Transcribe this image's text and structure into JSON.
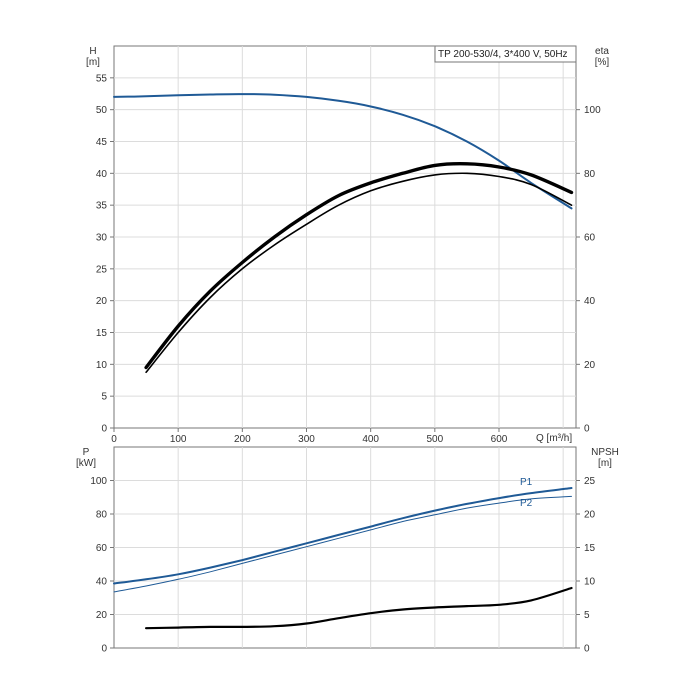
{
  "chart_data": [
    {
      "type": "line",
      "title": "TP 200-530/4, 3*400 V, 50Hz",
      "xlabel": "Q [m³/h]",
      "x_ticks": [
        "0",
        "100",
        "200",
        "300",
        "400",
        "500",
        "600"
      ],
      "xlim": [
        0,
        720
      ],
      "left_axis": {
        "label": "H",
        "unit": "[m]",
        "ylim": [
          0,
          60
        ],
        "ticks": [
          "0",
          "5",
          "10",
          "15",
          "20",
          "25",
          "30",
          "35",
          "40",
          "45",
          "50",
          "55"
        ]
      },
      "right_axis": {
        "label": "eta",
        "unit": "[%]",
        "ylim": [
          0,
          120
        ],
        "ticks": [
          "0",
          "20",
          "40",
          "60",
          "80",
          "100"
        ]
      },
      "grid": true,
      "series": [
        {
          "axis": "left",
          "color": "#1f5a96",
          "points": [
            [
              0,
              52.0
            ],
            [
              50,
              52.1
            ],
            [
              100,
              52.25
            ],
            [
              150,
              52.38
            ],
            [
              200,
              52.45
            ],
            [
              250,
              52.35
            ],
            [
              300,
              52.0
            ],
            [
              350,
              51.4
            ],
            [
              400,
              50.5
            ],
            [
              450,
              49.2
            ],
            [
              500,
              47.4
            ],
            [
              550,
              45.0
            ],
            [
              600,
              42.0
            ],
            [
              650,
              38.5
            ],
            [
              713,
              34.5
            ]
          ]
        },
        {
          "axis": "right",
          "color": "#000000",
          "points": [
            [
              50,
              19
            ],
            [
              100,
              32
            ],
            [
              150,
              43
            ],
            [
              200,
              52
            ],
            [
              250,
              60
            ],
            [
              300,
              67
            ],
            [
              350,
              73
            ],
            [
              400,
              77
            ],
            [
              450,
              80
            ],
            [
              500,
              82.5
            ],
            [
              550,
              83
            ],
            [
              600,
              82
            ],
            [
              650,
              79.5
            ],
            [
              713,
              74
            ]
          ]
        },
        {
          "axis": "right",
          "color": "#000000",
          "points": [
            [
              50,
              17.5
            ],
            [
              100,
              30
            ],
            [
              150,
              41
            ],
            [
              200,
              50
            ],
            [
              250,
              57.5
            ],
            [
              300,
              64
            ],
            [
              350,
              70
            ],
            [
              400,
              74.5
            ],
            [
              450,
              77.5
            ],
            [
              500,
              79.5
            ],
            [
              550,
              80
            ],
            [
              600,
              79
            ],
            [
              650,
              76.5
            ],
            [
              713,
              70
            ]
          ]
        }
      ]
    },
    {
      "type": "line",
      "xlim": [
        0,
        720
      ],
      "left_axis": {
        "label": "P",
        "unit": "[kW]",
        "ylim": [
          0,
          120
        ],
        "ticks": [
          "0",
          "20",
          "40",
          "60",
          "80",
          "100"
        ]
      },
      "right_axis": {
        "label": "NPSH",
        "unit": "[m]",
        "ylim": [
          0,
          30
        ],
        "ticks": [
          "0",
          "5",
          "10",
          "15",
          "20",
          "25"
        ]
      },
      "grid": true,
      "series": [
        {
          "name": "P1",
          "axis": "left",
          "color": "#1f5a96",
          "points": [
            [
              0,
              38.5
            ],
            [
              50,
              41
            ],
            [
              100,
              44
            ],
            [
              150,
              48
            ],
            [
              200,
              52.5
            ],
            [
              250,
              57.5
            ],
            [
              300,
              62.5
            ],
            [
              350,
              67.5
            ],
            [
              400,
              72.5
            ],
            [
              450,
              77.5
            ],
            [
              500,
              82
            ],
            [
              550,
              86
            ],
            [
              600,
              89.5
            ],
            [
              650,
              92.5
            ],
            [
              713,
              95.5
            ]
          ]
        },
        {
          "name": "P2",
          "axis": "left",
          "color": "#1f5a96",
          "points": [
            [
              0,
              33.5
            ],
            [
              50,
              37
            ],
            [
              100,
              41
            ],
            [
              150,
              45.5
            ],
            [
              200,
              50.5
            ],
            [
              250,
              55.5
            ],
            [
              300,
              60.5
            ],
            [
              350,
              65.5
            ],
            [
              400,
              70.5
            ],
            [
              450,
              75.5
            ],
            [
              500,
              79.5
            ],
            [
              550,
              83.5
            ],
            [
              600,
              86.5
            ],
            [
              650,
              89
            ],
            [
              713,
              90.5
            ]
          ]
        },
        {
          "axis": "right",
          "color": "#000000",
          "points": [
            [
              50,
              2.95
            ],
            [
              100,
              3.05
            ],
            [
              150,
              3.15
            ],
            [
              200,
              3.15
            ],
            [
              250,
              3.25
            ],
            [
              300,
              3.65
            ],
            [
              350,
              4.45
            ],
            [
              400,
              5.2
            ],
            [
              450,
              5.75
            ],
            [
              500,
              6.05
            ],
            [
              550,
              6.25
            ],
            [
              600,
              6.45
            ],
            [
              650,
              7.1
            ],
            [
              713,
              8.95
            ]
          ]
        }
      ]
    }
  ]
}
